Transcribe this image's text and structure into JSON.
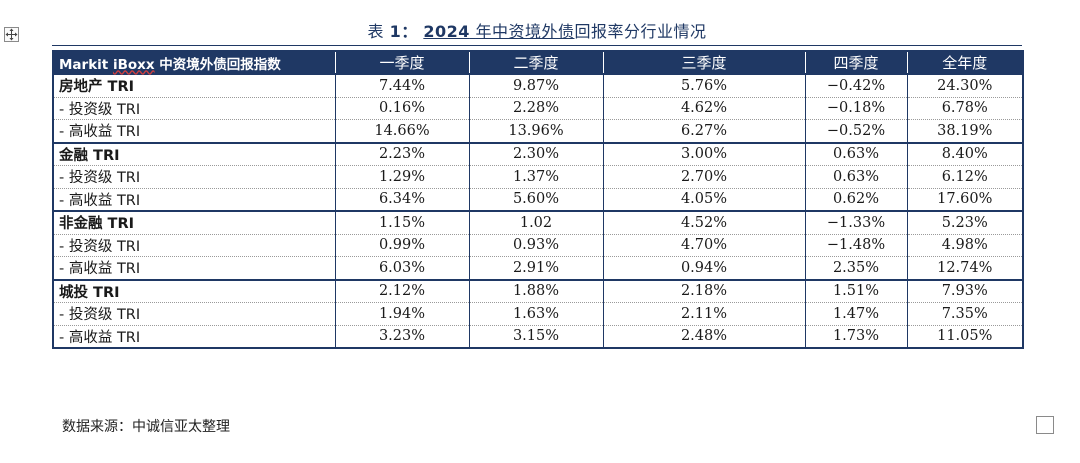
{
  "caption": {
    "label": "表",
    "number": "1：",
    "year": "2024",
    "title_rest": "年中资境外债",
    "suffix": "回报率分行业情况"
  },
  "table": {
    "header": {
      "index_prefix": "Markit ",
      "index_brand": "iBoxx",
      "index_suffix": " 中资境外债回报指数",
      "columns": [
        "一季度",
        "二季度",
        "三季度",
        "四季度",
        "全年度"
      ]
    },
    "groups": [
      {
        "name": "房地产",
        "suffix": " TRI",
        "values": [
          "7.44%",
          "9.87%",
          "5.76%",
          "−0.42%",
          "24.30%"
        ],
        "subrows": [
          {
            "label": "- 投资级 TRI",
            "values": [
              "0.16%",
              "2.28%",
              "4.62%",
              "−0.18%",
              "6.78%"
            ]
          },
          {
            "label": "- 高收益 TRI",
            "values": [
              "14.66%",
              "13.96%",
              "6.27%",
              "−0.52%",
              "38.19%"
            ]
          }
        ]
      },
      {
        "name": "金融",
        "suffix": " TRI",
        "values": [
          "2.23%",
          "2.30%",
          "3.00%",
          "0.63%",
          "8.40%"
        ],
        "subrows": [
          {
            "label": "- 投资级 TRI",
            "values": [
              "1.29%",
              "1.37%",
              "2.70%",
              "0.63%",
              "6.12%"
            ]
          },
          {
            "label": "- 高收益 TRI",
            "values": [
              "6.34%",
              "5.60%",
              "4.05%",
              "0.62%",
              "17.60%"
            ]
          }
        ]
      },
      {
        "name": "非金融",
        "suffix": " TRI",
        "values": [
          "1.15%",
          "1.02",
          "4.52%",
          "−1.33%",
          "5.23%"
        ],
        "subrows": [
          {
            "label": "- 投资级 TRI",
            "values": [
              "0.99%",
              "0.93%",
              "4.70%",
              "−1.48%",
              "4.98%"
            ]
          },
          {
            "label": "- 高收益 TRI",
            "values": [
              "6.03%",
              "2.91%",
              "0.94%",
              "2.35%",
              "12.74%"
            ]
          }
        ]
      },
      {
        "name": "城投",
        "suffix": " TRI",
        "values": [
          "2.12%",
          "1.88%",
          "2.18%",
          "1.51%",
          "7.93%"
        ],
        "subrows": [
          {
            "label": "- 投资级 TRI",
            "values": [
              "1.94%",
              "1.63%",
              "2.11%",
              "1.47%",
              "7.35%"
            ]
          },
          {
            "label": "- 高收益 TRI",
            "values": [
              "3.23%",
              "3.15%",
              "2.48%",
              "1.73%",
              "11.05%"
            ]
          }
        ]
      }
    ]
  },
  "source_note": "数据来源：中诚信亚太整理",
  "colors": {
    "header_bg": "#1f3864",
    "border": "#1f3864",
    "text": "#1a1a1a"
  },
  "icons": {
    "move_handle": "table-move-icon",
    "resize_handle": "table-resize-icon"
  }
}
